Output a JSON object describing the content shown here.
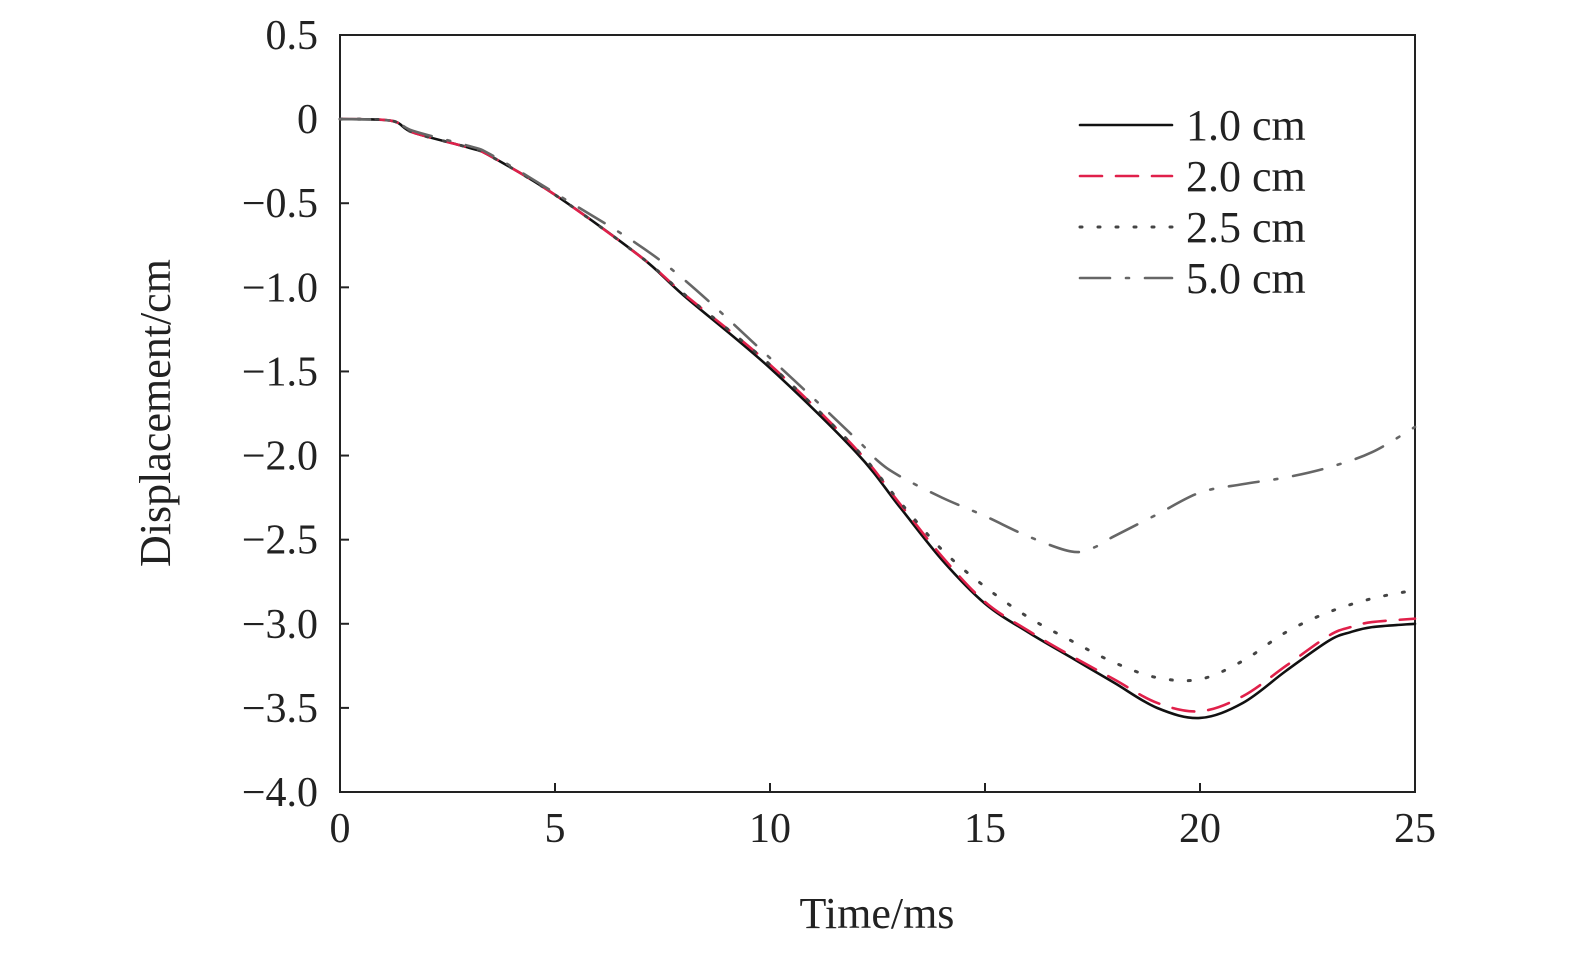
{
  "chart_data": {
    "type": "line",
    "title": "",
    "xlabel": "Time/ms",
    "ylabel": "Displacement/cm",
    "xlim": [
      0,
      25
    ],
    "ylim": [
      -4.0,
      0.5
    ],
    "xticks": [
      0,
      5,
      10,
      15,
      20,
      25
    ],
    "xtick_labels": [
      "0",
      "5",
      "10",
      "15",
      "20",
      "25"
    ],
    "yticks": [
      0.5,
      0,
      -0.5,
      -1.0,
      -1.5,
      -2.0,
      -2.5,
      -3.0,
      -3.5,
      -4.0
    ],
    "ytick_labels": [
      "0.5",
      "0",
      "−0.5",
      "−1.0",
      "−1.5",
      "−2.0",
      "−2.5",
      "−3.0",
      "−3.5",
      "−4.0"
    ],
    "grid": false,
    "legend_position": "top-right",
    "series": [
      {
        "name": "1.0 cm",
        "color": "#111111",
        "style": "solid",
        "x": [
          0,
          1.2,
          1.7,
          3,
          3.5,
          5,
          7,
          8,
          10,
          12,
          13,
          14,
          15,
          16,
          17,
          18,
          19,
          20,
          21,
          22,
          23,
          23.5,
          24,
          25
        ],
        "y": [
          0,
          -0.01,
          -0.08,
          -0.17,
          -0.22,
          -0.45,
          -0.82,
          -1.05,
          -1.48,
          -1.98,
          -2.3,
          -2.62,
          -2.88,
          -3.05,
          -3.2,
          -3.35,
          -3.5,
          -3.56,
          -3.47,
          -3.28,
          -3.1,
          -3.05,
          -3.02,
          -3.0
        ]
      },
      {
        "name": "2.0 cm",
        "color": "#e0204a",
        "style": "dashed",
        "x": [
          0,
          1.2,
          1.7,
          3,
          3.5,
          5,
          7,
          8,
          10,
          12,
          13,
          14,
          15,
          16,
          17,
          18,
          19,
          20,
          21,
          22,
          23,
          23.5,
          24,
          25
        ],
        "y": [
          0,
          -0.01,
          -0.08,
          -0.17,
          -0.22,
          -0.45,
          -0.82,
          -1.04,
          -1.46,
          -1.96,
          -2.28,
          -2.6,
          -2.87,
          -3.04,
          -3.19,
          -3.33,
          -3.47,
          -3.52,
          -3.43,
          -3.25,
          -3.07,
          -3.02,
          -2.99,
          -2.97
        ]
      },
      {
        "name": "2.5 cm",
        "color": "#444444",
        "style": "dotted",
        "x": [
          0,
          1.2,
          1.7,
          3,
          3.5,
          5,
          7,
          8,
          10,
          12,
          13,
          14,
          15,
          16,
          17,
          18,
          19,
          20,
          21,
          22,
          23,
          24,
          25
        ],
        "y": [
          0,
          -0.01,
          -0.08,
          -0.17,
          -0.22,
          -0.45,
          -0.82,
          -1.04,
          -1.46,
          -1.96,
          -2.27,
          -2.56,
          -2.78,
          -2.96,
          -3.1,
          -3.23,
          -3.32,
          -3.33,
          -3.22,
          -3.05,
          -2.93,
          -2.85,
          -2.8
        ]
      },
      {
        "name": "5.0 cm",
        "color": "#666666",
        "style": "dashdot",
        "x": [
          0,
          1.2,
          1.7,
          3,
          3.5,
          5,
          7.5,
          10,
          12,
          12.5,
          13,
          14,
          15,
          16,
          17,
          17.5,
          18,
          19,
          20,
          21,
          22,
          23,
          24,
          25
        ],
        "y": [
          0,
          -0.01,
          -0.07,
          -0.16,
          -0.21,
          -0.44,
          -0.85,
          -1.42,
          -1.9,
          -2.03,
          -2.12,
          -2.25,
          -2.36,
          -2.48,
          -2.57,
          -2.55,
          -2.48,
          -2.35,
          -2.22,
          -2.17,
          -2.13,
          -2.07,
          -1.98,
          -1.83
        ]
      }
    ]
  }
}
